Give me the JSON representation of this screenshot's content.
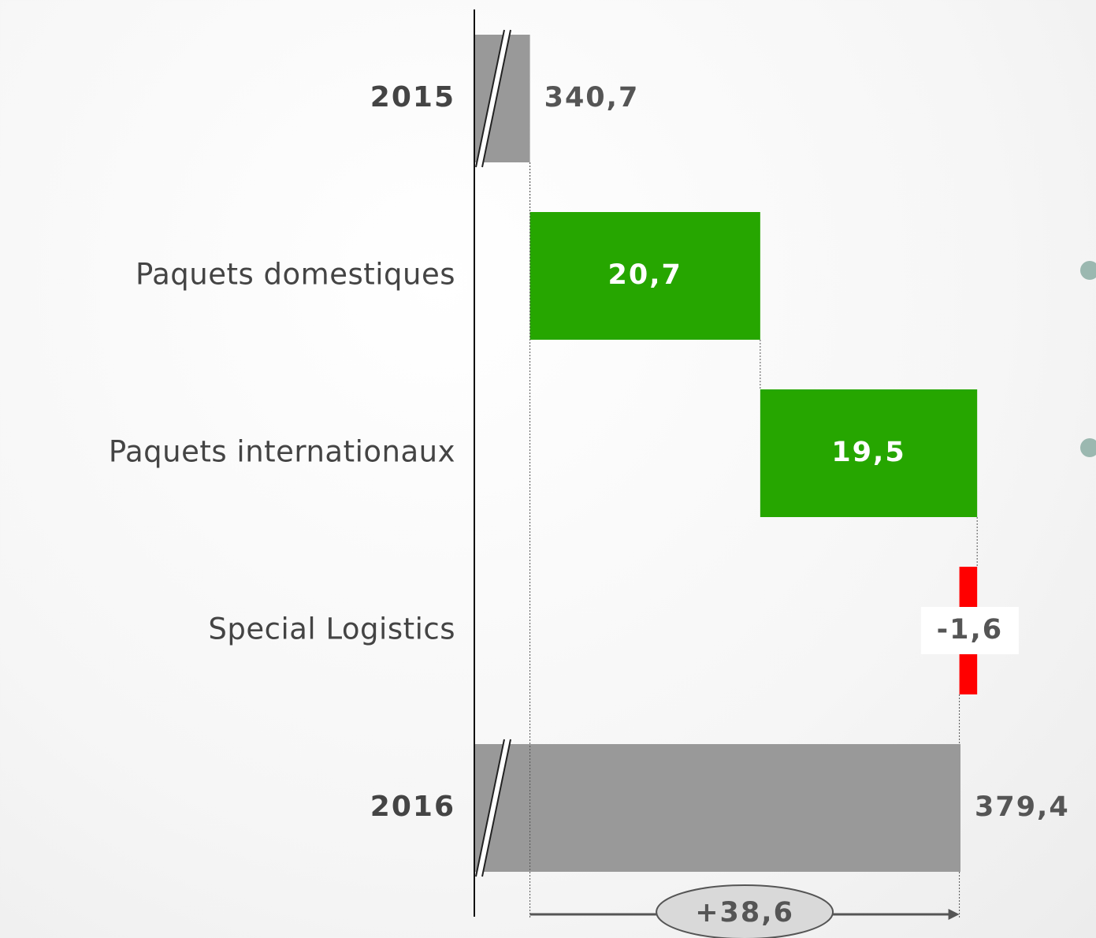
{
  "chart_data": {
    "type": "waterfall",
    "categories": [
      "2015",
      "Paquets domestiques",
      "Paquets internationaux",
      "Special Logistics",
      "2016"
    ],
    "values": [
      340.7,
      20.7,
      19.5,
      -1.6,
      379.4
    ],
    "value_labels": [
      "340,7",
      "20,7",
      "19,5",
      "-1,6",
      "379,4"
    ],
    "totals": [
      true,
      false,
      false,
      false,
      true
    ],
    "total_color": "#999999",
    "increase_color": "#26a600",
    "decrease_color": "#ff0000",
    "xlim": [
      335.7,
      381
    ],
    "axis_break": true,
    "annotation": {
      "label": "+38,6",
      "value": 38.6
    }
  }
}
